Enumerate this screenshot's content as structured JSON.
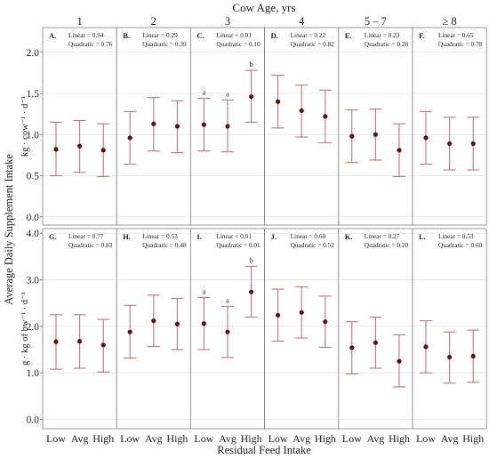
{
  "chart_data": {
    "type": "scatter",
    "title": "Cow Age, yrs",
    "xlabel": "Residual Feed Intake",
    "ylabel": "Average Daily Supplement Intake",
    "categories": [
      "Low",
      "Avg",
      "High"
    ],
    "columns": [
      "1",
      "2",
      "3",
      "4",
      "5 – 7",
      "≥ 8"
    ],
    "error_bar_color": "#b07a7a",
    "point_color": "#5a0f16",
    "rows": [
      {
        "ylabel": "kg · cow⁻¹ · d⁻¹",
        "ylim": [
          -0.1,
          2.3
        ],
        "yticks": [
          "0.0",
          "0.5",
          "1.0",
          "1.5",
          "2.0"
        ],
        "ytick_values": [
          0,
          0.5,
          1,
          1.5,
          2
        ],
        "panels": [
          {
            "label": "A.",
            "stats": [
              "Linear = 0.94",
              "Quadratic = 0.76"
            ],
            "mean": [
              0.82,
              0.86,
              0.81
            ],
            "lower": [
              0.5,
              0.54,
              0.49
            ],
            "upper": [
              1.15,
              1.17,
              1.13
            ],
            "letters": [
              "",
              "",
              ""
            ]
          },
          {
            "label": "B.",
            "stats": [
              "Linear = 0.29",
              "Quadratic = 0.39"
            ],
            "mean": [
              0.96,
              1.13,
              1.1
            ],
            "lower": [
              0.64,
              0.8,
              0.78
            ],
            "upper": [
              1.28,
              1.45,
              1.41
            ],
            "letters": [
              "",
              "",
              ""
            ]
          },
          {
            "label": "C.",
            "stats": [
              "Linear < 0.01",
              "Quadratic = 0.10"
            ],
            "mean": [
              1.12,
              1.1,
              1.46
            ],
            "lower": [
              0.8,
              0.79,
              1.15
            ],
            "upper": [
              1.44,
              1.42,
              1.78
            ],
            "letters": [
              "a",
              "a",
              "b"
            ]
          },
          {
            "label": "D.",
            "stats": [
              "Linear = 0.22",
              "Quadratic = 0.82"
            ],
            "mean": [
              1.4,
              1.29,
              1.22
            ],
            "lower": [
              1.08,
              0.97,
              0.9
            ],
            "upper": [
              1.72,
              1.6,
              1.54
            ],
            "letters": [
              "",
              "",
              ""
            ]
          },
          {
            "label": "E.",
            "stats": [
              "Linear = 0.23",
              "Quadratic = 0.28"
            ],
            "mean": [
              0.98,
              1.0,
              0.81
            ],
            "lower": [
              0.66,
              0.69,
              0.49
            ],
            "upper": [
              1.3,
              1.31,
              1.13
            ],
            "letters": [
              "",
              "",
              ""
            ]
          },
          {
            "label": "F.",
            "stats": [
              "Linear = 0.65",
              "Quadratic = 0.78"
            ],
            "mean": [
              0.96,
              0.89,
              0.89
            ],
            "lower": [
              0.64,
              0.57,
              0.57
            ],
            "upper": [
              1.28,
              1.21,
              1.21
            ],
            "letters": [
              "",
              "",
              ""
            ]
          }
        ]
      },
      {
        "ylabel": "g · kg of bw⁻¹ · d⁻¹",
        "ylim": [
          -0.2,
          4.1
        ],
        "yticks": [
          "0.0",
          "1.0",
          "2.0",
          "3.0",
          "4.0"
        ],
        "ytick_values": [
          0,
          1,
          2,
          3,
          4
        ],
        "panels": [
          {
            "label": "G.",
            "stats": [
              "Linear = 0.77",
              "Quadratic = 0.83"
            ],
            "mean": [
              1.67,
              1.68,
              1.6
            ],
            "lower": [
              1.08,
              1.1,
              1.02
            ],
            "upper": [
              2.25,
              2.25,
              2.15
            ],
            "letters": [
              "",
              "",
              ""
            ]
          },
          {
            "label": "H.",
            "stats": [
              "Linear = 0.53",
              "Quadratic = 0.48"
            ],
            "mean": [
              1.88,
              2.12,
              2.05
            ],
            "lower": [
              1.32,
              1.57,
              1.5
            ],
            "upper": [
              2.45,
              2.67,
              2.6
            ],
            "letters": [
              "",
              "",
              ""
            ]
          },
          {
            "label": "I.",
            "stats": [
              "Linear < 0.01",
              "Quadratic = 0.01"
            ],
            "mean": [
              2.06,
              1.88,
              2.74
            ],
            "lower": [
              1.5,
              1.33,
              2.2
            ],
            "upper": [
              2.62,
              2.43,
              3.29
            ],
            "letters": [
              "a",
              "a",
              "b"
            ]
          },
          {
            "label": "J.",
            "stats": [
              "Linear = 0.60",
              "Quadratic = 0.52"
            ],
            "mean": [
              2.24,
              2.3,
              2.1
            ],
            "lower": [
              1.68,
              1.75,
              1.55
            ],
            "upper": [
              2.8,
              2.85,
              2.65
            ],
            "letters": [
              "",
              "",
              ""
            ]
          },
          {
            "label": "K.",
            "stats": [
              "Linear = 0.27",
              "Quadratic = 0.20"
            ],
            "mean": [
              1.54,
              1.65,
              1.25
            ],
            "lower": [
              0.98,
              1.1,
              0.7
            ],
            "upper": [
              2.1,
              2.2,
              1.82
            ],
            "letters": [
              "",
              "",
              ""
            ]
          },
          {
            "label": "L.",
            "stats": [
              "Linear = 0.53",
              "Quadratic = 0.60"
            ],
            "mean": [
              1.56,
              1.34,
              1.36
            ],
            "lower": [
              1.0,
              0.78,
              0.8
            ],
            "upper": [
              2.12,
              1.88,
              1.92
            ],
            "letters": [
              "",
              "",
              ""
            ]
          }
        ]
      }
    ]
  }
}
